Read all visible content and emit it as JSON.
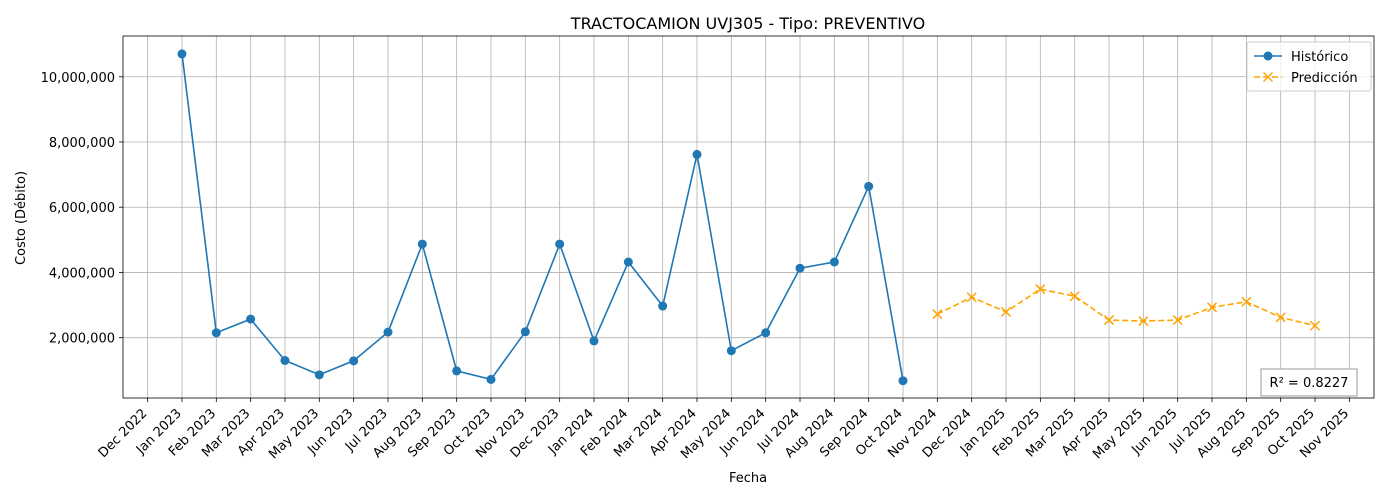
{
  "chart_data": {
    "type": "line",
    "title": "TRACTOCAMION UVJ305 - Tipo: PREVENTIVO",
    "xlabel": "Fecha",
    "ylabel": "Costo (Débito)",
    "x_ticks": [
      "Dec 2022",
      "Jan 2023",
      "Feb 2023",
      "Mar 2023",
      "Apr 2023",
      "May 2023",
      "Jun 2023",
      "Jul 2023",
      "Aug 2023",
      "Sep 2023",
      "Oct 2023",
      "Nov 2023",
      "Dec 2023",
      "Jan 2024",
      "Feb 2024",
      "Mar 2024",
      "Apr 2024",
      "May 2024",
      "Jun 2024",
      "Jul 2024",
      "Aug 2024",
      "Sep 2024",
      "Oct 2024",
      "Nov 2024",
      "Dec 2024",
      "Jan 2025",
      "Feb 2025",
      "Mar 2025",
      "Apr 2025",
      "May 2025",
      "Jun 2025",
      "Jul 2025",
      "Aug 2025",
      "Sep 2025",
      "Oct 2025",
      "Nov 2025"
    ],
    "x_range": [
      "2022-12-01",
      "2025-11-01"
    ],
    "y_ticks": [
      2000000,
      4000000,
      6000000,
      8000000,
      10000000
    ],
    "y_tick_labels": [
      "2,000,000",
      "4,000,000",
      "6,000,000",
      "8,000,000",
      "10,000,000"
    ],
    "ylim": [
      150000,
      11250000
    ],
    "grid": true,
    "legend_position": "top-right",
    "series": [
      {
        "name": "Histórico",
        "color": "#1f77b4",
        "style": "solid",
        "marker": "circle",
        "x": [
          "2023-01-01",
          "2023-02-01",
          "2023-03-01",
          "2023-04-01",
          "2023-05-01",
          "2023-06-01",
          "2023-07-01",
          "2023-08-01",
          "2023-09-01",
          "2023-10-01",
          "2023-11-01",
          "2023-12-01",
          "2024-01-01",
          "2024-02-01",
          "2024-03-01",
          "2024-04-01",
          "2024-05-01",
          "2024-06-01",
          "2024-07-01",
          "2024-08-01",
          "2024-09-01",
          "2024-10-01"
        ],
        "values": [
          10700000,
          2150000,
          2570000,
          1300000,
          860000,
          1290000,
          2170000,
          4870000,
          980000,
          720000,
          2180000,
          4870000,
          1900000,
          4320000,
          2970000,
          7620000,
          1600000,
          2150000,
          4130000,
          4320000,
          6640000,
          680000
        ]
      },
      {
        "name": "Predicción",
        "color": "#ffa500",
        "style": "dashed",
        "marker": "x",
        "x": [
          "2024-11-01",
          "2024-12-01",
          "2025-01-01",
          "2025-02-01",
          "2025-03-01",
          "2025-04-01",
          "2025-05-01",
          "2025-06-01",
          "2025-07-01",
          "2025-08-01",
          "2025-09-01",
          "2025-10-01"
        ],
        "values": [
          2720000,
          3240000,
          2790000,
          3490000,
          3270000,
          2540000,
          2510000,
          2540000,
          2930000,
          3100000,
          2620000,
          2370000
        ]
      }
    ],
    "annotation": "R² = 0.8227"
  }
}
